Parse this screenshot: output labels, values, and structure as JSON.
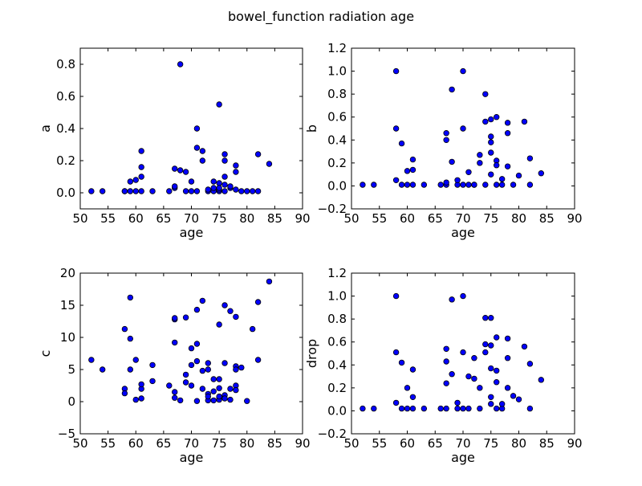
{
  "figure": {
    "suptitle": "bowel_function radiation age"
  },
  "chart_data": [
    {
      "type": "scatter",
      "xlabel": "age",
      "ylabel": "a",
      "xlim": [
        50,
        90
      ],
      "ylim": [
        -0.1,
        0.9
      ],
      "xticks": [
        "50",
        "55",
        "60",
        "65",
        "70",
        "75",
        "80",
        "85",
        "90"
      ],
      "yticks": [
        "0.0",
        "0.2",
        "0.4",
        "0.6",
        "0.8"
      ],
      "ytick_values": [
        0.0,
        0.2,
        0.4,
        0.6,
        0.8
      ],
      "x": [
        52,
        54,
        58,
        58,
        59,
        59,
        60,
        60,
        61,
        61,
        61,
        61,
        63,
        66,
        67,
        67,
        67,
        68,
        68,
        69,
        69,
        70,
        70,
        71,
        71,
        71,
        72,
        72,
        73,
        73,
        74,
        74,
        74,
        75,
        75,
        75,
        75,
        75,
        76,
        76,
        76,
        76,
        76,
        77,
        77,
        78,
        78,
        78,
        79,
        80,
        81,
        82,
        82,
        84
      ],
      "y": [
        0.01,
        0.01,
        0.01,
        0.01,
        0.01,
        0.07,
        0.01,
        0.08,
        0.01,
        0.1,
        0.16,
        0.26,
        0.01,
        0.01,
        0.03,
        0.04,
        0.15,
        0.8,
        0.14,
        0.01,
        0.13,
        0.07,
        0.01,
        0.01,
        0.28,
        0.4,
        0.2,
        0.26,
        0.01,
        0.02,
        0.01,
        0.03,
        0.07,
        0.01,
        0.02,
        0.06,
        0.55,
        0.03,
        0.01,
        0.05,
        0.1,
        0.2,
        0.24,
        0.03,
        0.04,
        0.02,
        0.13,
        0.17,
        0.01,
        0.01,
        0.01,
        0.01,
        0.24,
        0.18
      ]
    },
    {
      "type": "scatter",
      "xlabel": "age",
      "ylabel": "b",
      "xlim": [
        50,
        90
      ],
      "ylim": [
        -0.2,
        1.2
      ],
      "xticks": [
        "50",
        "55",
        "60",
        "65",
        "70",
        "75",
        "80",
        "85",
        "90"
      ],
      "yticks": [
        "−0.2",
        "0.0",
        "0.2",
        "0.4",
        "0.6",
        "0.8",
        "1.0",
        "1.2"
      ],
      "ytick_values": [
        -0.2,
        0.0,
        0.2,
        0.4,
        0.6,
        0.8,
        1.0,
        1.2
      ],
      "x": [
        52,
        54,
        58,
        58,
        58,
        59,
        59,
        60,
        60,
        61,
        61,
        61,
        63,
        66,
        67,
        67,
        67,
        67,
        68,
        68,
        69,
        69,
        70,
        70,
        70,
        71,
        71,
        72,
        72,
        73,
        73,
        74,
        74,
        74,
        75,
        75,
        75,
        75,
        75,
        76,
        76,
        76,
        76,
        77,
        77,
        78,
        78,
        78,
        79,
        80,
        81,
        82,
        82,
        84
      ],
      "y": [
        0.01,
        0.01,
        1.0,
        0.5,
        0.05,
        0.37,
        0.01,
        0.01,
        0.13,
        0.01,
        0.14,
        0.23,
        0.01,
        0.01,
        0.01,
        0.03,
        0.4,
        0.46,
        0.84,
        0.21,
        0.01,
        0.05,
        0.01,
        0.5,
        1.0,
        0.01,
        0.12,
        0.01,
        0.01,
        0.27,
        0.2,
        0.56,
        0.8,
        0.01,
        0.1,
        0.29,
        0.38,
        0.43,
        0.58,
        0.01,
        0.6,
        0.22,
        0.18,
        0.01,
        0.06,
        0.46,
        0.55,
        0.17,
        0.01,
        0.09,
        0.56,
        0.01,
        0.24,
        0.11
      ]
    },
    {
      "type": "scatter",
      "xlabel": "age",
      "ylabel": "c",
      "xlim": [
        50,
        90
      ],
      "ylim": [
        -5,
        20
      ],
      "xticks": [
        "50",
        "55",
        "60",
        "65",
        "70",
        "75",
        "80",
        "85",
        "90"
      ],
      "yticks": [
        "−5",
        "0",
        "5",
        "10",
        "15",
        "20"
      ],
      "ytick_values": [
        -5,
        0,
        5,
        10,
        15,
        20
      ],
      "x": [
        52,
        54,
        58,
        58,
        58,
        59,
        59,
        59,
        60,
        60,
        61,
        61,
        61,
        63,
        63,
        66,
        67,
        67,
        67,
        67,
        67,
        68,
        69,
        69,
        69,
        70,
        70,
        70,
        71,
        71,
        71,
        71,
        72,
        72,
        72,
        73,
        73,
        73,
        73,
        73,
        74,
        74,
        74,
        75,
        75,
        75,
        75,
        75,
        75,
        76,
        76,
        76,
        76,
        77,
        77,
        77,
        78,
        78,
        78,
        78,
        78,
        79,
        80,
        81,
        82,
        82,
        84
      ],
      "y": [
        6.5,
        5.0,
        11.3,
        2.0,
        1.3,
        16.2,
        9.8,
        5.0,
        6.5,
        0.3,
        0.5,
        2.0,
        2.7,
        3.2,
        5.7,
        2.5,
        12.8,
        13.0,
        9.2,
        1.5,
        0.6,
        0.2,
        4.2,
        3.0,
        13.1,
        8.3,
        5.7,
        2.5,
        14.3,
        9.0,
        6.3,
        0.1,
        15.7,
        4.8,
        2.0,
        6.0,
        5.0,
        1.2,
        0.2,
        0.8,
        3.5,
        1.6,
        0.2,
        12.0,
        3.5,
        0.7,
        0.3,
        0.8,
        2.1,
        15.0,
        6.0,
        1.0,
        0.5,
        14.1,
        0.3,
        2.0,
        13.2,
        5.5,
        5.0,
        2.5,
        1.8,
        5.3,
        0.1,
        11.3,
        15.5,
        6.5,
        18.7
      ]
    },
    {
      "type": "scatter",
      "xlabel": "age",
      "ylabel": "drop",
      "xlim": [
        50,
        90
      ],
      "ylim": [
        -0.2,
        1.2
      ],
      "xticks": [
        "50",
        "55",
        "60",
        "65",
        "70",
        "75",
        "80",
        "85",
        "90"
      ],
      "yticks": [
        "−0.2",
        "0.0",
        "0.2",
        "0.4",
        "0.6",
        "0.8",
        "1.0",
        "1.2"
      ],
      "ytick_values": [
        -0.2,
        0.0,
        0.2,
        0.4,
        0.6,
        0.8,
        1.0,
        1.2
      ],
      "x": [
        52,
        54,
        58,
        58,
        58,
        59,
        59,
        60,
        60,
        61,
        61,
        61,
        63,
        66,
        67,
        67,
        67,
        67,
        68,
        68,
        69,
        69,
        70,
        70,
        70,
        71,
        71,
        72,
        72,
        73,
        73,
        74,
        74,
        74,
        75,
        75,
        75,
        75,
        75,
        76,
        76,
        76,
        76,
        77,
        77,
        78,
        78,
        78,
        79,
        80,
        81,
        82,
        82,
        84
      ],
      "y": [
        0.02,
        0.02,
        1.0,
        0.51,
        0.07,
        0.42,
        0.02,
        0.2,
        0.02,
        0.12,
        0.36,
        0.02,
        0.02,
        0.02,
        0.02,
        0.24,
        0.43,
        0.54,
        0.97,
        0.32,
        0.02,
        0.07,
        0.02,
        0.51,
        1.0,
        0.3,
        0.02,
        0.28,
        0.46,
        0.02,
        0.2,
        0.51,
        0.81,
        0.58,
        0.81,
        0.57,
        0.37,
        0.12,
        0.06,
        0.35,
        0.64,
        0.25,
        0.02,
        0.02,
        0.06,
        0.46,
        0.63,
        0.2,
        0.13,
        0.1,
        0.56,
        0.41,
        0.02,
        0.27
      ]
    }
  ]
}
